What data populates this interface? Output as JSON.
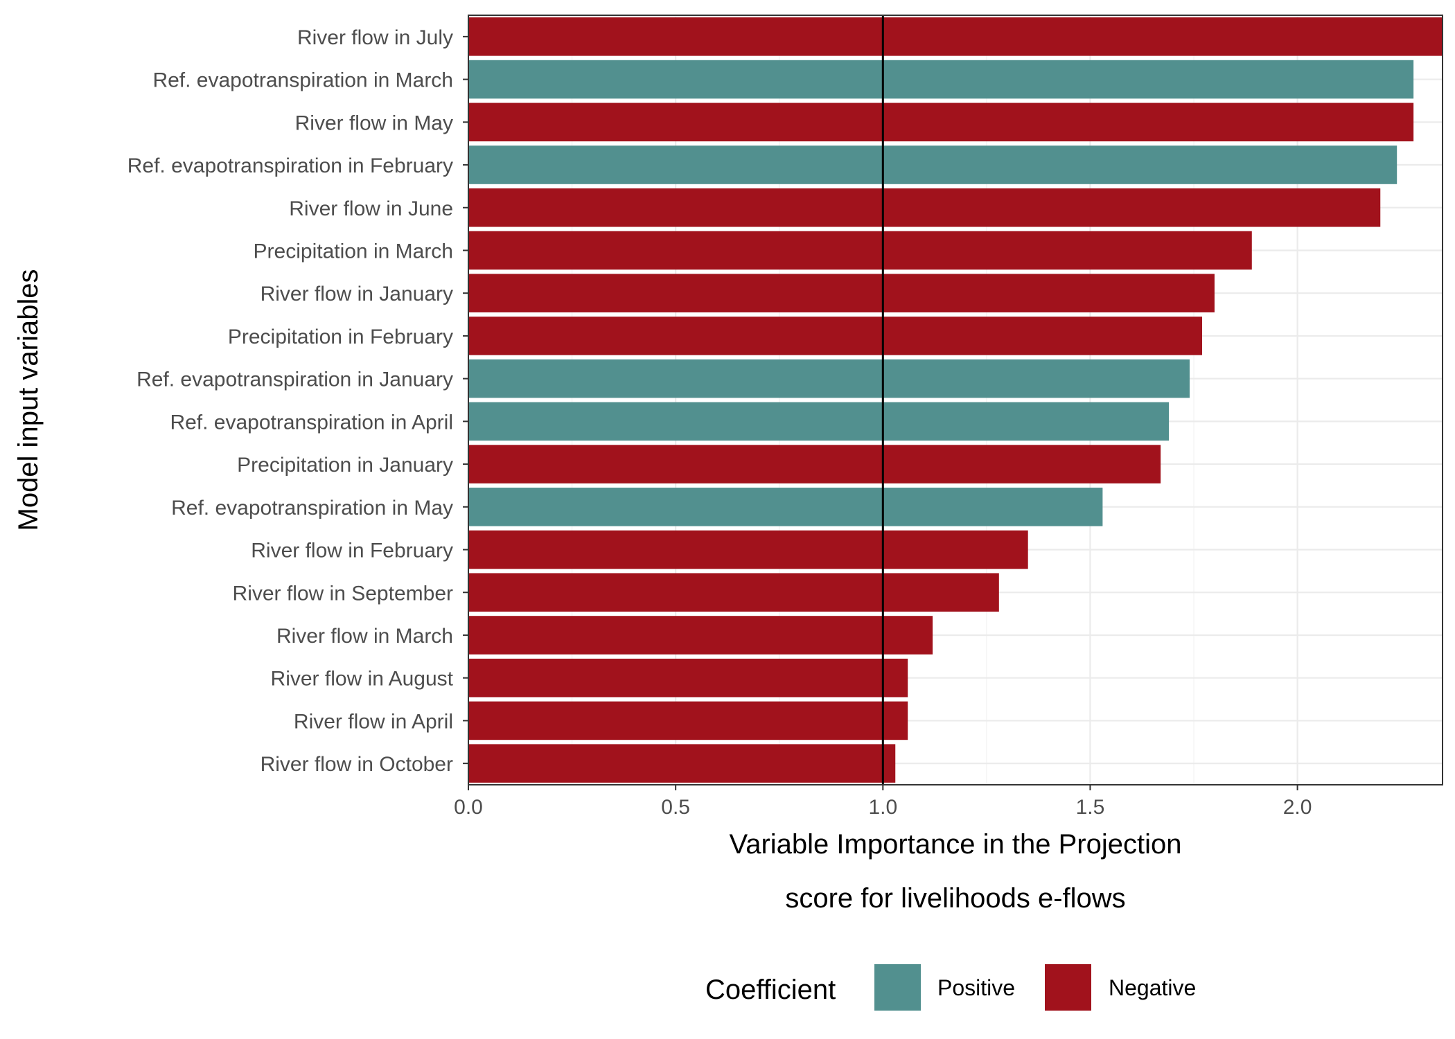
{
  "chart_data": {
    "type": "bar",
    "orientation": "horizontal",
    "xlabel_line1": "Variable Importance in the Projection",
    "xlabel_line2": "score for livelihoods e-flows",
    "ylabel": "Model input variables",
    "xlim": [
      0,
      2.35
    ],
    "xticks": [
      {
        "value": 0.0,
        "label": "0.0"
      },
      {
        "value": 0.5,
        "label": "0.5"
      },
      {
        "value": 1.0,
        "label": "1.0"
      },
      {
        "value": 1.5,
        "label": "1.5"
      },
      {
        "value": 2.0,
        "label": "2.0"
      }
    ],
    "reference_line": 1.0,
    "grid": true,
    "legend": {
      "title": "Coefficient",
      "position": "bottom",
      "entries": [
        {
          "key": "positive",
          "label": "Positive",
          "color": "#52908f"
        },
        {
          "key": "negative",
          "label": "Negative",
          "color": "#a1121c"
        }
      ]
    },
    "categories": [
      "River flow in July",
      "Ref. evapotranspiration in March",
      "River flow in May",
      "Ref. evapotranspiration in February",
      "River flow in June",
      "Precipitation in March",
      "River flow in January",
      "Precipitation in February",
      "Ref. evapotranspiration in January",
      "Ref. evapotranspiration in April",
      "Precipitation in January",
      "Ref. evapotranspiration in May",
      "River flow in February",
      "River flow in September",
      "River flow in March",
      "River flow in August",
      "River flow in April",
      "River flow in October"
    ],
    "values": [
      2.35,
      2.28,
      2.28,
      2.24,
      2.2,
      1.89,
      1.8,
      1.77,
      1.74,
      1.69,
      1.67,
      1.53,
      1.35,
      1.28,
      1.12,
      1.06,
      1.06,
      1.03
    ],
    "coefficients": [
      "negative",
      "positive",
      "negative",
      "positive",
      "negative",
      "negative",
      "negative",
      "negative",
      "positive",
      "positive",
      "negative",
      "positive",
      "negative",
      "negative",
      "negative",
      "negative",
      "negative",
      "negative"
    ]
  }
}
